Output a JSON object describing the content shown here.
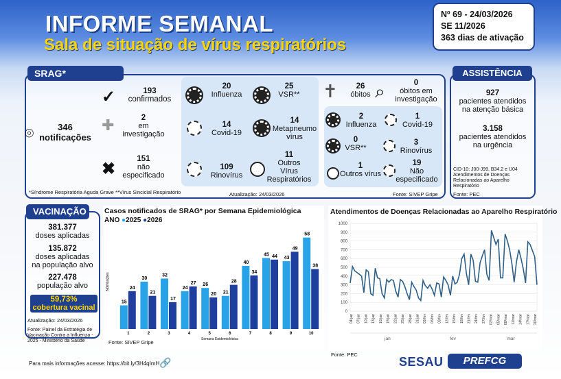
{
  "header": {
    "title": "INFORME SEMANAL",
    "subtitle": "Sala de situação de vírus respiratórios",
    "report_no": "Nº 69 - 24/03/2026",
    "week": "SE 11/2026",
    "days": "363 dias de ativação"
  },
  "srag": {
    "tab": "SRAG*",
    "notif_num": "346",
    "notif_label": "notificações",
    "confirmed_num": "193",
    "confirmed_label": "confirmados",
    "invest_num": "2",
    "invest_label1": "em",
    "invest_label2": "investigação",
    "unspec_num": "151",
    "unspec_label1": "não",
    "unspec_label2": "especificado",
    "viruses": [
      {
        "num": "20",
        "label": "Influenza"
      },
      {
        "num": "25",
        "label": "VSR**"
      },
      {
        "num": "14",
        "label": "Covid-19"
      },
      {
        "num": "14",
        "label": "Metapneumo",
        "label2": "vírus"
      },
      {
        "num": "109",
        "label": "Rinovírus"
      },
      {
        "num": "11",
        "label": "Outros",
        "label2": "Vírus",
        "label3": "Respiratórios"
      }
    ],
    "deaths_num": "26",
    "deaths_label": "óbitos",
    "deaths_inv_num": "0",
    "deaths_inv_label1": "óbitos em",
    "deaths_inv_label2": "investigação",
    "death_viruses": [
      {
        "num": "2",
        "label": "Influenza"
      },
      {
        "num": "1",
        "label": "Covid-19"
      },
      {
        "num": "0",
        "label": "VSR**"
      },
      {
        "num": "3",
        "label": "Rinovírus"
      },
      {
        "num": "1",
        "label": "Outros vírus"
      },
      {
        "num": "19",
        "label": "Não",
        "label2": "especificado"
      }
    ],
    "footnote": "*Síndrome Respiratória Aguda Grave **Vírus Sincicial Respiratório",
    "updated": "Atualização: 24/03/2026",
    "source": "Fonte: SIVEP Gripe"
  },
  "assist": {
    "tab": "ASSISTÊNCIA",
    "num1": "927",
    "label1a": "pacientes atendidos",
    "label1b": "na atenção básica",
    "num2": "3.158",
    "label2a": "pacientes atendidos",
    "label2b": "na urgência",
    "cid1": "CID-10: J00-J99, B34.2 e U04",
    "cid2": "Atendimentos de Doenças",
    "cid3": "Relacionadas ao Aparelho",
    "cid4": "Respiratório",
    "source": "Fonte: PEC"
  },
  "vac": {
    "tab": "VACINAÇÃO",
    "n1": "381.377",
    "l1": "doses aplicadas",
    "n2": "135.872",
    "l2a": "doses aplicadas",
    "l2b": "na população alvo",
    "n3": "227.478",
    "l3": "população alvo",
    "pct": "59,73%",
    "pct_label": "cobertura vacinal",
    "updated": "Atualização: 24/03/2026",
    "src1": "Fonte: Painel da Estratégia de",
    "src2": "Vacinação Contra a Influenza -",
    "src3": "2025 - Ministério da Saúde"
  },
  "footer": {
    "more": "Para mais informações acesse: https://bit.ly/3H4qImH",
    "sesau": "SESAU",
    "pref": "PREFCG"
  },
  "colors": {
    "navy": "#1f3f8f",
    "y2025": "#29a3e8",
    "y2026": "#1f3f9e",
    "line": "#2e5f87"
  },
  "chart_data": [
    {
      "type": "bar",
      "title": "Casos notificados de SRAG* por Semana Epidemiológica",
      "legend_title": "ANO",
      "xlabel": "Semana Epidemiológica",
      "ylabel": "Notificações",
      "source": "Fonte: SIVEP Gripe",
      "categories": [
        "1",
        "2",
        "3",
        "4",
        "5",
        "6",
        "7",
        "8",
        "9",
        "10"
      ],
      "ylim": [
        0,
        60
      ],
      "legend": "top-left",
      "series": [
        {
          "name": "2025",
          "values": [
            15,
            30,
            32,
            24,
            26,
            21,
            40,
            45,
            43,
            58
          ]
        },
        {
          "name": "2026",
          "values": [
            24,
            21,
            17,
            27,
            20,
            28,
            34,
            44,
            49,
            38
          ]
        }
      ]
    },
    {
      "type": "line",
      "title": "Atendimentos de Doenças Relacionadas ao Aparelho Respiratório",
      "source": "Fonte: PEC",
      "ylim": [
        0,
        1000
      ],
      "yticks": [
        "0",
        "100",
        "200",
        "300",
        "400",
        "500",
        "600",
        "700",
        "800",
        "900",
        "1000"
      ],
      "xticks": [
        "04/jan",
        "07/jan",
        "10/jan",
        "13/jan",
        "16/jan",
        "19/jan",
        "22/jan",
        "25/jan",
        "28/jan",
        "31/jan",
        "03/fev",
        "06/fev",
        "09/fev",
        "12/fev",
        "15/fev",
        "18/fev",
        "21/fev",
        "24/fev",
        "27/fev",
        "02/mar",
        "05/mar",
        "08/mar",
        "11/mar",
        "14/mar",
        "17/mar",
        "20/mar"
      ],
      "months": [
        "jan",
        "fev",
        "mar"
      ],
      "values": [
        320,
        510,
        460,
        440,
        420,
        400,
        210,
        470,
        450,
        200,
        180,
        490,
        380,
        370,
        200,
        150,
        360,
        330,
        360,
        350,
        230,
        160,
        360,
        340,
        280,
        200,
        130,
        330,
        280,
        240,
        150,
        120,
        350,
        290,
        260,
        300,
        250,
        180,
        320,
        310,
        160,
        390,
        350,
        300,
        180,
        400,
        310,
        330,
        420,
        600,
        650,
        430,
        300,
        650,
        580,
        340,
        330,
        550,
        630,
        700,
        420,
        350,
        920,
        840,
        760,
        820,
        380,
        380,
        880,
        800,
        700,
        540,
        330,
        560,
        700,
        600,
        480,
        320,
        790,
        760,
        690,
        620,
        300
      ]
    }
  ]
}
